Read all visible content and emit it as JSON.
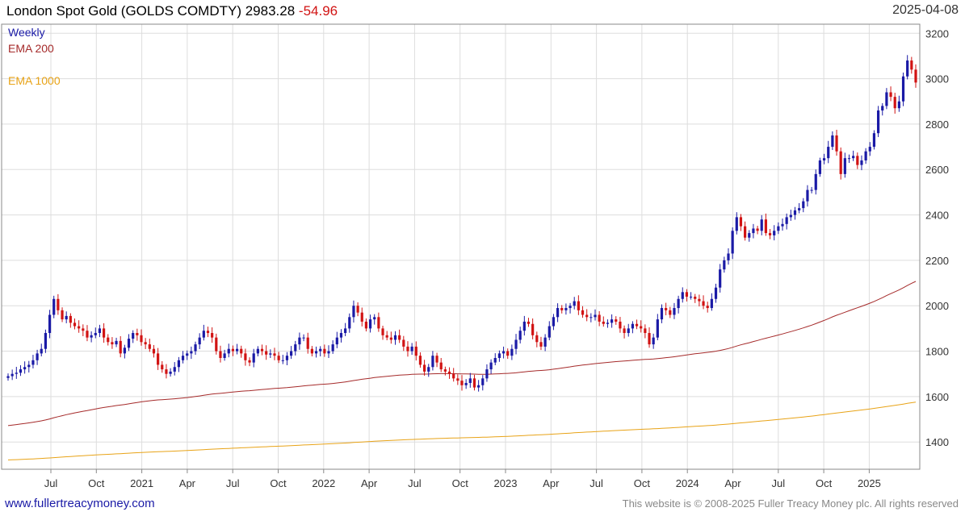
{
  "header": {
    "title": "London Spot Gold (GOLDS COMDTY) 2983.28",
    "change": "-54.96",
    "date": "2025-04-08"
  },
  "footer": {
    "website": "www.fullertreacymoney.com",
    "copyright": "This website is © 2008-2025 Fuller Treacy Money plc. All rights reserved"
  },
  "colors": {
    "up": "#1a1aa6",
    "down": "#d11313",
    "ema200": "#a52a2a",
    "ema1000": "#e8a317",
    "grid": "#dddddd"
  },
  "chart_data": {
    "type": "line",
    "title": "London Spot Gold (GOLDS COMDTY) 2983.28",
    "frequency": "Weekly",
    "ylim": [
      1280,
      3240
    ],
    "y_ticks": [
      1400,
      1600,
      1800,
      2000,
      2200,
      2400,
      2600,
      2800,
      3000,
      3200
    ],
    "grid": true,
    "x_ticks": [
      "Jul",
      "Oct",
      "2021",
      "Apr",
      "Jul",
      "Oct",
      "2022",
      "Apr",
      "Jul",
      "Oct",
      "2023",
      "Apr",
      "Jul",
      "Oct",
      "2024",
      "Apr",
      "Jul",
      "Oct",
      "2025"
    ],
    "legend": [
      {
        "name": "Weekly",
        "color": "#1a1aa6"
      },
      {
        "name": "EMA 200",
        "color": "#a52a2a"
      },
      {
        "name": "EMA 1000",
        "color": "#e8a317"
      }
    ],
    "weekly_close": [
      1690,
      1700,
      1705,
      1720,
      1730,
      1740,
      1760,
      1790,
      1810,
      1880,
      1960,
      2030,
      1980,
      1940,
      1955,
      1925,
      1910,
      1900,
      1890,
      1860,
      1870,
      1880,
      1900,
      1860,
      1840,
      1830,
      1845,
      1790,
      1815,
      1855,
      1880,
      1870,
      1840,
      1830,
      1810,
      1790,
      1740,
      1720,
      1700,
      1710,
      1730,
      1760,
      1780,
      1790,
      1800,
      1830,
      1860,
      1890,
      1880,
      1860,
      1800,
      1770,
      1790,
      1810,
      1800,
      1810,
      1790,
      1760,
      1750,
      1790,
      1810,
      1800,
      1785,
      1790,
      1780,
      1760,
      1760,
      1780,
      1800,
      1830,
      1860,
      1860,
      1810,
      1790,
      1800,
      1810,
      1790,
      1800,
      1830,
      1860,
      1880,
      1900,
      1950,
      2000,
      1970,
      1930,
      1900,
      1940,
      1950,
      1900,
      1870,
      1860,
      1850,
      1870,
      1850,
      1820,
      1800,
      1820,
      1780,
      1740,
      1710,
      1730,
      1780,
      1750,
      1720,
      1710,
      1700,
      1680,
      1670,
      1650,
      1660,
      1680,
      1640,
      1650,
      1680,
      1720,
      1750,
      1770,
      1790,
      1800,
      1780,
      1810,
      1850,
      1890,
      1930,
      1920,
      1870,
      1840,
      1820,
      1860,
      1910,
      1950,
      1990,
      1980,
      1990,
      2000,
      2020,
      1980,
      1960,
      1950,
      1950,
      1960,
      1930,
      1920,
      1925,
      1940,
      1930,
      1900,
      1880,
      1900,
      1920,
      1910,
      1900,
      1880,
      1830,
      1860,
      1940,
      1990,
      1980,
      1960,
      1990,
      2030,
      2060,
      2040,
      2040,
      2030,
      2020,
      2000,
      1990,
      2030,
      2080,
      2160,
      2200,
      2230,
      2330,
      2390,
      2350,
      2300,
      2320,
      2340,
      2330,
      2380,
      2320,
      2310,
      2330,
      2350,
      2360,
      2390,
      2400,
      2420,
      2430,
      2460,
      2510,
      2510,
      2580,
      2640,
      2650,
      2700,
      2750,
      2680,
      2580,
      2650,
      2650,
      2660,
      2620,
      2640,
      2680,
      2700,
      2760,
      2860,
      2880,
      2940,
      2920,
      2870,
      2900,
      3010,
      3080,
      3040,
      2983
    ]
  }
}
